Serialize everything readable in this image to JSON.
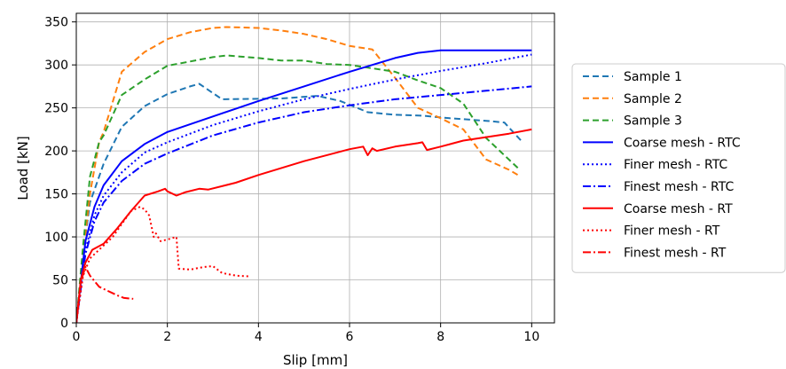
{
  "chart_data": {
    "type": "line",
    "title": "",
    "xlabel": "Slip [mm]",
    "ylabel": "Load [kN]",
    "xlim": [
      0,
      10.5
    ],
    "ylim": [
      0,
      360
    ],
    "xticks": [
      0,
      2,
      4,
      6,
      8,
      10
    ],
    "yticks": [
      0,
      50,
      100,
      150,
      200,
      250,
      300,
      350
    ],
    "grid": true,
    "legend_position": "right",
    "series": [
      {
        "name": "Sample 1",
        "color": "#1f77b4",
        "style": "dashed",
        "x": [
          0,
          0.15,
          0.3,
          0.5,
          0.6,
          1.0,
          1.5,
          2.0,
          2.5,
          2.7,
          3.2,
          4.5,
          5.3,
          5.8,
          6.4,
          7.0,
          7.6,
          8.2,
          9.0,
          9.4,
          9.8
        ],
        "y": [
          0,
          80,
          140,
          170,
          185,
          228,
          252,
          266,
          275,
          278,
          260,
          261,
          264,
          258,
          245,
          242,
          241,
          238,
          235,
          233,
          210
        ]
      },
      {
        "name": "Sample 2",
        "color": "#ff7f0e",
        "style": "dashed",
        "x": [
          0,
          0.15,
          0.3,
          0.5,
          0.6,
          1.0,
          1.5,
          2.0,
          2.5,
          3.0,
          3.3,
          4.0,
          4.5,
          5.0,
          5.5,
          6.0,
          6.5,
          7.0,
          7.5,
          8.0,
          8.5,
          9.0,
          9.5,
          9.7
        ],
        "y": [
          0,
          80,
          150,
          210,
          222,
          292,
          315,
          330,
          338,
          343,
          344,
          343,
          340,
          336,
          330,
          322,
          318,
          285,
          250,
          238,
          225,
          190,
          178,
          172
        ]
      },
      {
        "name": "Sample 3",
        "color": "#2ca02c",
        "style": "dashed",
        "x": [
          0,
          0.15,
          0.3,
          0.5,
          0.6,
          1.0,
          1.5,
          2.0,
          2.5,
          3.0,
          3.3,
          4.0,
          4.5,
          5.0,
          5.5,
          6.0,
          6.5,
          7.0,
          7.5,
          8.0,
          8.5,
          9.0,
          9.4,
          9.7
        ],
        "y": [
          0,
          90,
          170,
          210,
          218,
          265,
          283,
          299,
          304,
          309,
          311,
          308,
          305,
          305,
          301,
          300,
          296,
          292,
          282,
          273,
          255,
          215,
          195,
          180
        ]
      },
      {
        "name": "Coarse mesh - RTC",
        "color": "#0000ff",
        "style": "solid",
        "x": [
          0,
          0.2,
          0.4,
          0.6,
          1.0,
          1.5,
          2.0,
          3.0,
          4.0,
          5.0,
          6.0,
          7.0,
          7.5,
          8.0,
          9.0,
          10.0
        ],
        "y": [
          0,
          95,
          135,
          160,
          188,
          208,
          222,
          240,
          258,
          275,
          292,
          308,
          314,
          317,
          317,
          317
        ]
      },
      {
        "name": "Finer mesh - RTC",
        "color": "#0000ff",
        "style": "dotted",
        "x": [
          0,
          0.2,
          0.4,
          0.6,
          1.0,
          1.5,
          2.0,
          3.0,
          4.0,
          5.0,
          6.0,
          7.0,
          8.0,
          9.0,
          10.0
        ],
        "y": [
          0,
          85,
          125,
          148,
          175,
          198,
          210,
          230,
          246,
          260,
          272,
          283,
          293,
          302,
          312
        ]
      },
      {
        "name": "Finest mesh - RTC",
        "color": "#0000ff",
        "style": "dashdot",
        "x": [
          0,
          0.2,
          0.4,
          0.6,
          1.0,
          1.5,
          2.0,
          3.0,
          4.0,
          5.0,
          6.0,
          7.0,
          8.0,
          9.0,
          10.0
        ],
        "y": [
          0,
          80,
          118,
          140,
          165,
          185,
          197,
          218,
          233,
          245,
          253,
          260,
          265,
          270,
          275
        ]
      },
      {
        "name": "Coarse mesh - RT",
        "color": "#ff0000",
        "style": "solid",
        "x": [
          0,
          0.1,
          0.2,
          0.35,
          0.6,
          0.9,
          1.2,
          1.5,
          1.8,
          1.95,
          2.0,
          2.2,
          2.4,
          2.7,
          2.9,
          3.5,
          4.0,
          5.0,
          6.0,
          6.3,
          6.4,
          6.5,
          6.6,
          7.0,
          7.5,
          7.6,
          7.7,
          8.0,
          8.5,
          9.0,
          9.5,
          10.0
        ],
        "y": [
          0,
          50,
          70,
          85,
          92,
          110,
          130,
          148,
          153,
          156,
          153,
          148,
          152,
          156,
          155,
          163,
          172,
          188,
          202,
          205,
          195,
          203,
          200,
          205,
          209,
          210,
          201,
          205,
          212,
          216,
          220,
          225
        ]
      },
      {
        "name": "Finer mesh - RT",
        "color": "#ff0000",
        "style": "dotted",
        "x": [
          0,
          0.15,
          0.3,
          0.5,
          0.8,
          1.0,
          1.2,
          1.4,
          1.5,
          1.6,
          1.7,
          1.75,
          1.85,
          2.0,
          2.2,
          2.25,
          2.5,
          2.8,
          3.0,
          3.2,
          3.5,
          3.8
        ],
        "y": [
          0,
          55,
          75,
          85,
          100,
          115,
          130,
          135,
          132,
          125,
          100,
          104,
          95,
          97,
          100,
          63,
          62,
          65,
          66,
          58,
          55,
          54
        ]
      },
      {
        "name": "Finest mesh - RT",
        "color": "#ff0000",
        "style": "dashdot",
        "x": [
          0,
          0.1,
          0.2,
          0.3,
          0.5,
          0.7,
          0.9,
          1.05,
          1.25
        ],
        "y": [
          0,
          48,
          65,
          55,
          42,
          37,
          32,
          29,
          28
        ]
      }
    ]
  }
}
